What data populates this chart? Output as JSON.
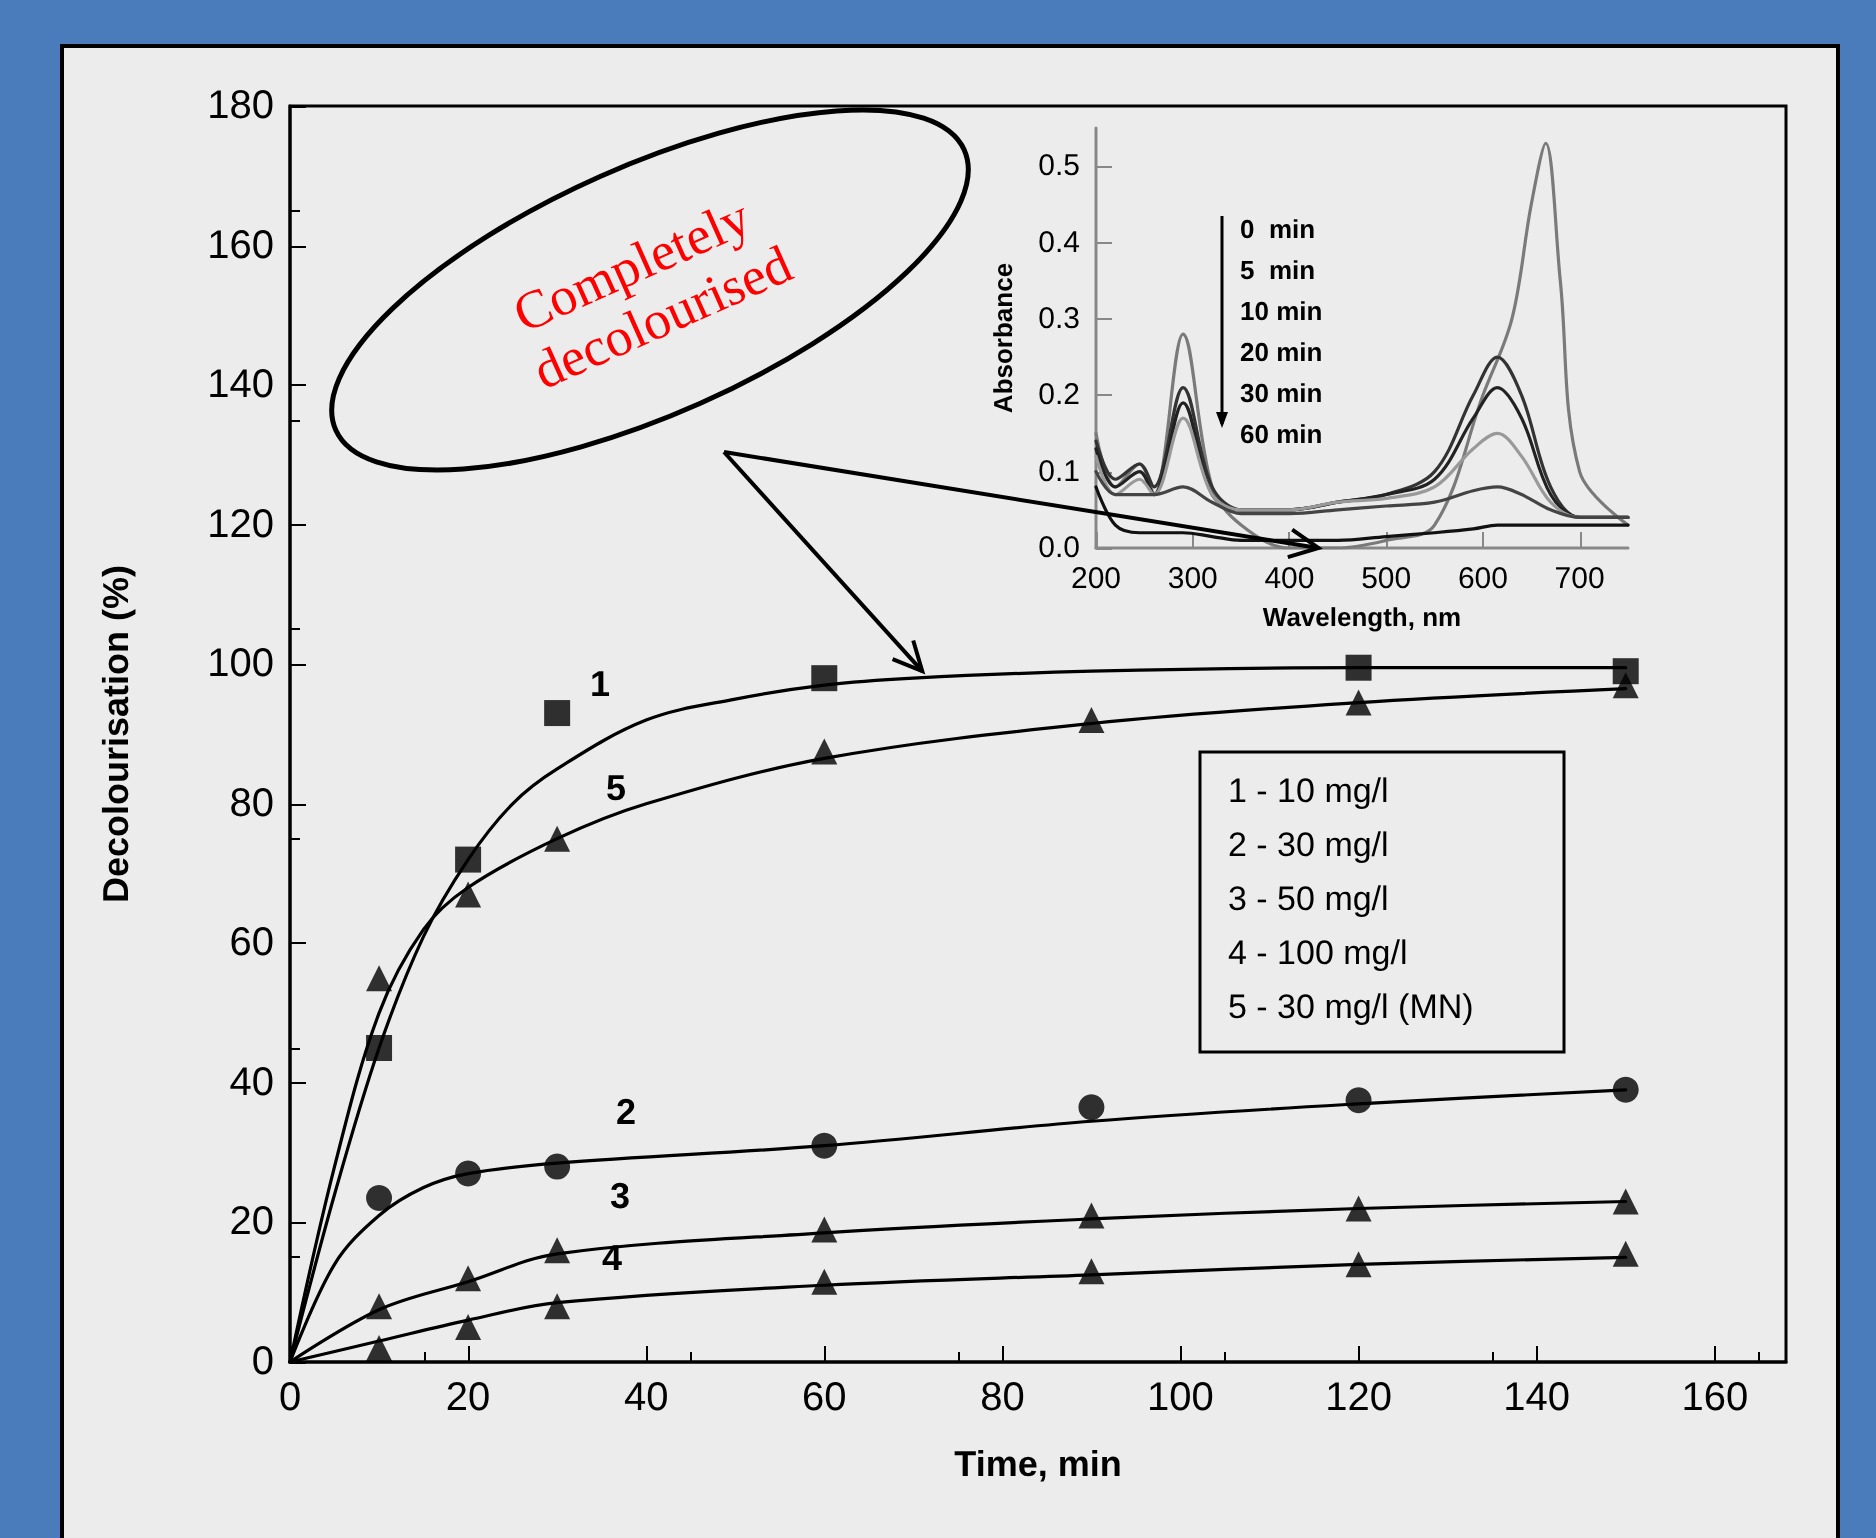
{
  "chart_data": [
    {
      "type": "scatter",
      "xlabel": "Time, min",
      "ylabel": "Decolourisation (%)",
      "xlim": [
        0,
        168
      ],
      "xticks": [
        0,
        20,
        40,
        60,
        80,
        100,
        120,
        140,
        160
      ],
      "ylim": [
        0,
        180
      ],
      "yticks": [
        0,
        20,
        40,
        60,
        80,
        100,
        120,
        140,
        160,
        180
      ],
      "grid": false,
      "series": [
        {
          "type": "scatter",
          "marker": "square",
          "color": "#000000",
          "x": [
            10,
            20,
            30,
            60,
            120,
            150
          ],
          "values": [
            45,
            72,
            93,
            98,
            99.5,
            99
          ]
        },
        {
          "type": "scatter",
          "marker": "circle",
          "color": "#000000",
          "x": [
            10,
            20,
            30,
            60,
            90,
            120,
            150
          ],
          "values": [
            23.5,
            27,
            28,
            31,
            36.5,
            37.5,
            39
          ]
        },
        {
          "type": "scatter",
          "marker": "triangle",
          "color": "#000000",
          "x": [
            10,
            20,
            30,
            60,
            90,
            120,
            150
          ],
          "values": [
            8,
            12,
            16,
            19,
            21,
            22,
            23
          ]
        },
        {
          "type": "scatter",
          "marker": "triangle",
          "color": "#000000",
          "x": [
            10,
            20,
            30,
            60,
            90,
            120,
            150
          ],
          "values": [
            2,
            5,
            8,
            11.5,
            13,
            14,
            15.5
          ]
        },
        {
          "type": "scatter",
          "marker": "triangle",
          "color": "#000000",
          "x": [
            10,
            20,
            30,
            60,
            90,
            120,
            150
          ],
          "values": [
            55,
            67,
            75,
            87.5,
            92,
            94.5,
            97
          ]
        },
        {
          "type": "line",
          "marker": "none",
          "color": "#000000",
          "x": [
            0,
            5,
            10,
            15,
            20,
            25,
            30,
            40,
            50,
            60,
            70,
            90,
            120,
            150
          ],
          "values": [
            0,
            24,
            45,
            61,
            72,
            80,
            85,
            92,
            95,
            97,
            98,
            99,
            99.5,
            99.5
          ]
        },
        {
          "type": "line",
          "marker": "none",
          "color": "#000000",
          "x": [
            0,
            5,
            10,
            15,
            20,
            30,
            60,
            90,
            120,
            150
          ],
          "values": [
            0,
            14,
            21,
            25,
            27,
            28.5,
            31,
            34.5,
            37,
            39
          ]
        },
        {
          "type": "line",
          "marker": "none",
          "color": "#000000",
          "x": [
            0,
            10,
            20,
            30,
            60,
            90,
            120,
            150
          ],
          "values": [
            0,
            7.5,
            11.5,
            15.5,
            18.5,
            20.5,
            22,
            23
          ]
        },
        {
          "type": "line",
          "marker": "none",
          "color": "#000000",
          "x": [
            0,
            10,
            20,
            30,
            60,
            90,
            120,
            150
          ],
          "values": [
            0,
            3,
            6,
            8.5,
            11,
            12.5,
            14,
            15
          ]
        },
        {
          "type": "line",
          "marker": "none",
          "color": "#000000",
          "x": [
            0,
            5,
            10,
            15,
            20,
            30,
            40,
            60,
            90,
            120,
            150
          ],
          "values": [
            0,
            28,
            50,
            62,
            68,
            75,
            80,
            86.5,
            91.5,
            94.5,
            96.5
          ]
        }
      ],
      "annotations": [
        "1",
        "2",
        "3",
        "4",
        "5",
        {
          "text": "Completely decolourised",
          "x": 71,
          "y": 99
        },
        "1 - 10 mg/l",
        "2 - 30 mg/l",
        "3 - 50 mg/l",
        "4 - 100 mg/l",
        "5 - 30 mg/l (MN)"
      ]
    },
    {
      "type": "line",
      "xlabel": "Wavelength, nm",
      "ylabel": "Absorbance",
      "xlim": [
        200,
        750
      ],
      "xticks": [
        200,
        300,
        400,
        500,
        600,
        700
      ],
      "ylim": [
        0,
        0.55
      ],
      "yticks": [
        {
          "value": 0,
          "label": "0.0"
        },
        0.1,
        0.2,
        0.3,
        0.4,
        0.5
      ],
      "grid": false,
      "series": [
        {
          "color": "#7a7a7a",
          "x": [
            200,
            220,
            245,
            260,
            290,
            320,
            350,
            400,
            450,
            500,
            550,
            600,
            630,
            650,
            665,
            680,
            700,
            750
          ],
          "values": [
            0.15,
            0.08,
            0.11,
            0.07,
            0.28,
            0.08,
            0.03,
            0.0,
            0.0,
            0.01,
            0.03,
            0.2,
            0.3,
            0.45,
            0.53,
            0.35,
            0.1,
            0.03
          ]
        },
        {
          "color": "#333333",
          "x": [
            200,
            220,
            245,
            260,
            290,
            320,
            350,
            400,
            450,
            500,
            550,
            590,
            615,
            640,
            670,
            700,
            750
          ],
          "values": [
            0.14,
            0.09,
            0.11,
            0.08,
            0.21,
            0.08,
            0.05,
            0.05,
            0.06,
            0.07,
            0.1,
            0.2,
            0.25,
            0.2,
            0.08,
            0.04,
            0.04
          ]
        },
        {
          "color": "#222222",
          "x": [
            200,
            220,
            245,
            260,
            290,
            320,
            350,
            400,
            450,
            500,
            550,
            590,
            615,
            640,
            670,
            700,
            750
          ],
          "values": [
            0.13,
            0.08,
            0.1,
            0.07,
            0.19,
            0.07,
            0.05,
            0.05,
            0.06,
            0.07,
            0.09,
            0.17,
            0.21,
            0.17,
            0.07,
            0.04,
            0.04
          ]
        },
        {
          "color": "#999999",
          "x": [
            200,
            220,
            245,
            260,
            290,
            320,
            350,
            400,
            450,
            500,
            550,
            590,
            615,
            640,
            670,
            700,
            750
          ],
          "values": [
            0.12,
            0.07,
            0.09,
            0.07,
            0.17,
            0.07,
            0.05,
            0.05,
            0.06,
            0.065,
            0.08,
            0.13,
            0.15,
            0.12,
            0.06,
            0.04,
            0.04
          ]
        },
        {
          "color": "#444444",
          "x": [
            200,
            220,
            245,
            260,
            290,
            320,
            350,
            400,
            450,
            500,
            550,
            590,
            615,
            640,
            670,
            700,
            750
          ],
          "values": [
            0.1,
            0.07,
            0.07,
            0.07,
            0.08,
            0.06,
            0.045,
            0.045,
            0.05,
            0.055,
            0.06,
            0.075,
            0.08,
            0.07,
            0.05,
            0.04,
            0.04
          ]
        },
        {
          "color": "#111111",
          "x": [
            200,
            220,
            245,
            260,
            290,
            320,
            350,
            400,
            450,
            500,
            550,
            590,
            615,
            640,
            670,
            700,
            750
          ],
          "values": [
            0.08,
            0.03,
            0.02,
            0.02,
            0.02,
            0.015,
            0.01,
            0.01,
            0.01,
            0.015,
            0.02,
            0.025,
            0.03,
            0.03,
            0.03,
            0.03,
            0.03
          ]
        }
      ],
      "annotations": [
        "0  min",
        "5  min",
        "10 min",
        "20 min",
        "30 min",
        "60 min"
      ]
    }
  ]
}
